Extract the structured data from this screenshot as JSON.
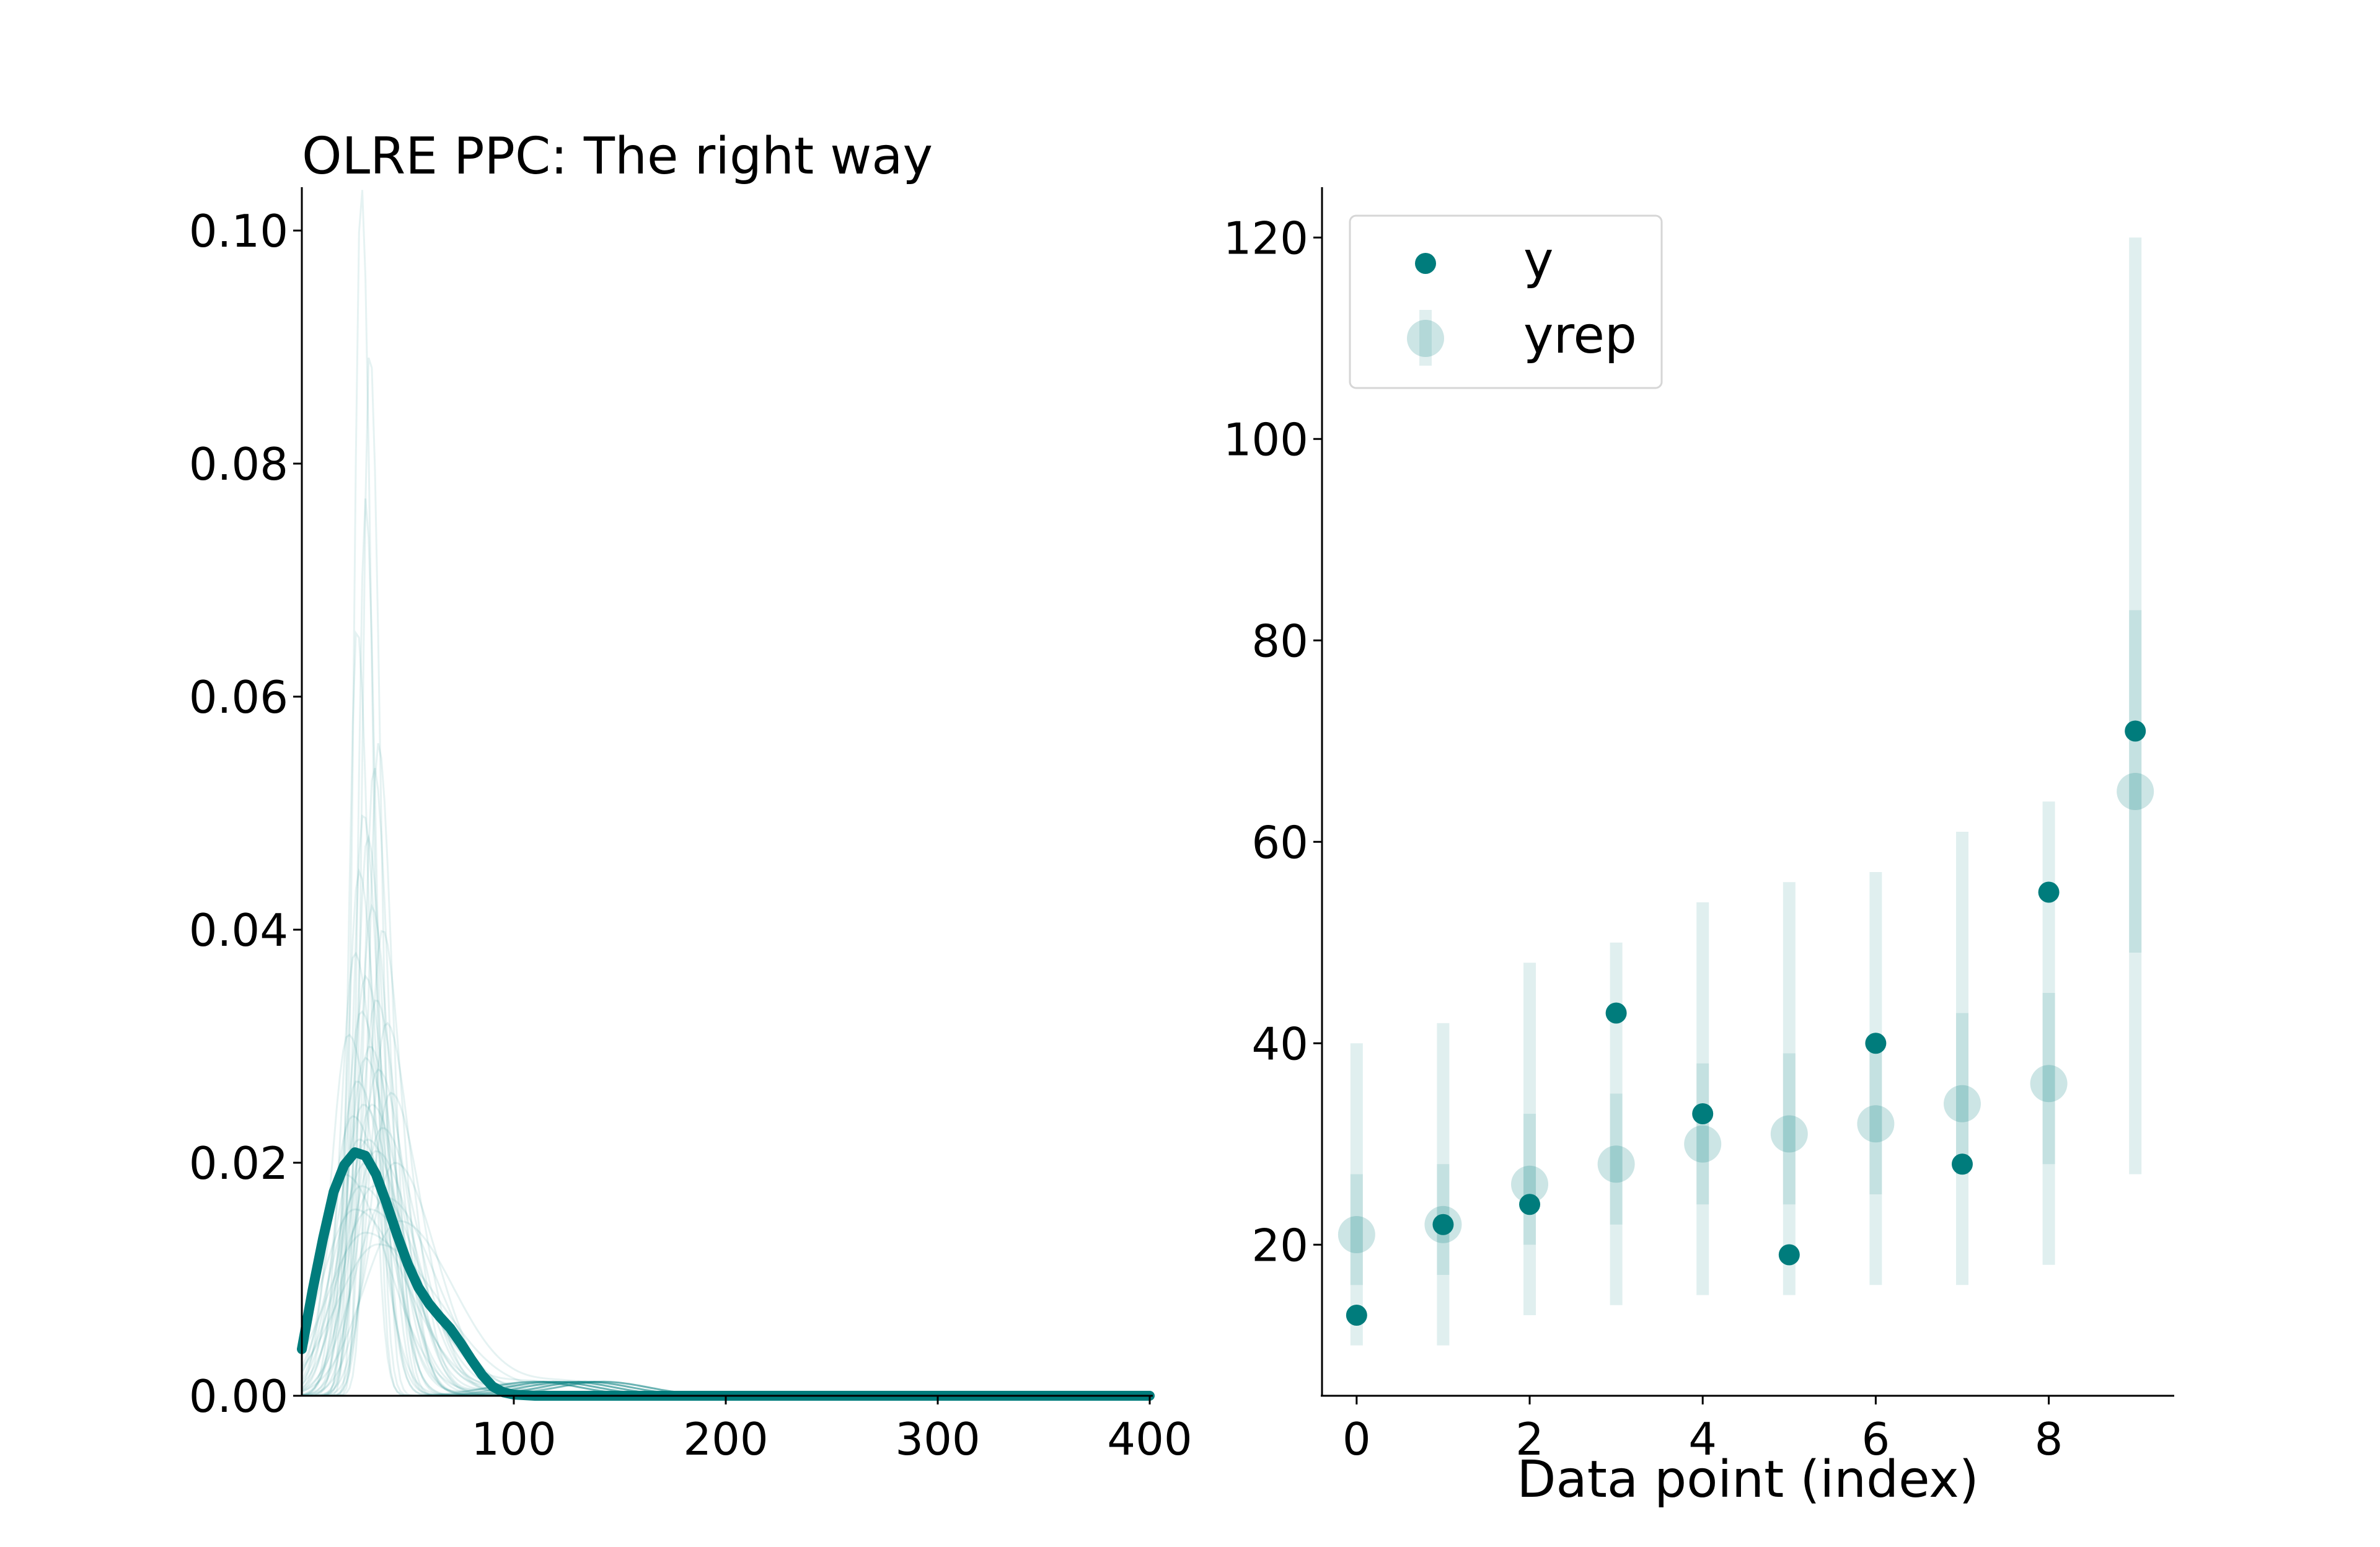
{
  "colors": {
    "accent": "#007c7c",
    "accent_light": "#bfdede",
    "background": "#ffffff"
  },
  "chart_data": [
    {
      "type": "line",
      "title": "OLRE PPC: The right way",
      "xlabel": "",
      "ylabel": "",
      "xlim": [
        0,
        400
      ],
      "ylim": [
        0,
        0.105
      ],
      "x_ticks": [
        "100",
        "200",
        "300",
        "400"
      ],
      "y_ticks": [
        "0.00",
        "0.02",
        "0.04",
        "0.06",
        "0.08",
        "0.10"
      ],
      "grid": false,
      "series": [
        {
          "role": "observed",
          "x": [
            0,
            5,
            10,
            15,
            20,
            25,
            30,
            35,
            40,
            45,
            50,
            55,
            60,
            65,
            70,
            75,
            80,
            85,
            90,
            95,
            100,
            110,
            120,
            150,
            200,
            300,
            400
          ],
          "y": [
            0.004,
            0.009,
            0.0135,
            0.0175,
            0.0198,
            0.0209,
            0.0206,
            0.019,
            0.0165,
            0.0138,
            0.0113,
            0.0093,
            0.0079,
            0.0068,
            0.0058,
            0.0045,
            0.0031,
            0.0018,
            0.0008,
            0.0003,
            0.0001,
            0,
            0,
            0,
            0,
            0,
            0
          ]
        },
        {
          "role": "replicated",
          "peaks": [
            0.104,
            0.09,
            0.077,
            0.066,
            0.056,
            0.054,
            0.05,
            0.048,
            0.045,
            0.042,
            0.04,
            0.038,
            0.036,
            0.034,
            0.033,
            0.032,
            0.031,
            0.03,
            0.029,
            0.028,
            0.027,
            0.026,
            0.025,
            0.025,
            0.024,
            0.023,
            0.022,
            0.022,
            0.021,
            0.02,
            0.02,
            0.019,
            0.018,
            0.018,
            0.017,
            0.016,
            0.016,
            0.015,
            0.014,
            0.013
          ],
          "modes": [
            28,
            32,
            30,
            26,
            36,
            34,
            29,
            31,
            27,
            33,
            38,
            25,
            30,
            35,
            28,
            40,
            22,
            32,
            30,
            36,
            26,
            42,
            29,
            33,
            24,
            38,
            31,
            27,
            35,
            44,
            30,
            20,
            34,
            28,
            40,
            32,
            25,
            46,
            30,
            36
          ]
        }
      ]
    },
    {
      "type": "scatter",
      "title": "",
      "xlabel": "Data point (index)",
      "ylabel": "",
      "xlim": [
        -0.4,
        9.45
      ],
      "ylim": [
        5,
        125
      ],
      "x_ticks": [
        "0",
        "2",
        "4",
        "6",
        "8"
      ],
      "y_ticks": [
        "20",
        "40",
        "60",
        "80",
        "100",
        "120"
      ],
      "grid": false,
      "legend": {
        "placement": "upper-left",
        "entries": [
          "y",
          "yrep"
        ]
      },
      "x": [
        0,
        1,
        2,
        3,
        4,
        5,
        6,
        7,
        8,
        9
      ],
      "series": [
        {
          "name": "y",
          "values": [
            13,
            22,
            24,
            43,
            33,
            19,
            40,
            28,
            55,
            71
          ]
        },
        {
          "name": "yrep",
          "values": [
            21,
            22,
            26,
            28,
            30,
            31,
            32,
            34,
            36,
            65
          ],
          "inner_low": [
            16,
            17,
            20,
            22,
            24,
            24,
            25,
            27,
            28,
            49
          ],
          "inner_high": [
            27,
            28,
            33,
            35,
            38,
            39,
            40,
            43,
            45,
            83
          ],
          "outer_low": [
            10,
            10,
            13,
            14,
            15,
            15,
            16,
            16,
            18,
            27
          ],
          "outer_high": [
            40,
            42,
            48,
            50,
            54,
            56,
            57,
            61,
            64,
            120
          ]
        }
      ]
    }
  ]
}
